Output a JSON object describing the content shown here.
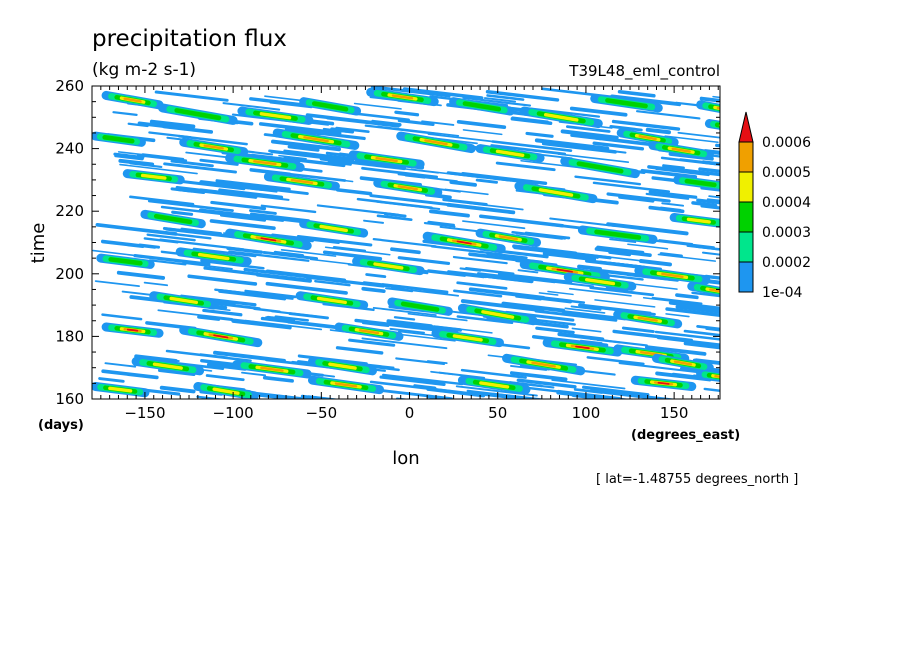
{
  "chart_data": {
    "type": "heatmap",
    "title": "precipitation flux",
    "subtitle": "(kg m-2 s-1)",
    "run_label": "T39L48_eml_control",
    "xlabel": "lon",
    "x_units": "(degrees_east)",
    "ylabel": "time",
    "y_units": "(days)",
    "footnote": "[ lat=-1.48755 degrees_north ]",
    "xlim": [
      -180,
      176
    ],
    "ylim": [
      160,
      260
    ],
    "x_ticks": [
      -150,
      -100,
      -50,
      0,
      50,
      100,
      150
    ],
    "x_tick_labels": [
      "−150",
      "−100",
      "−50",
      "0",
      "50",
      "100",
      "150"
    ],
    "y_ticks": [
      160,
      180,
      200,
      220,
      240,
      260
    ],
    "y_tick_labels": [
      "160",
      "180",
      "200",
      "220",
      "240",
      "260"
    ],
    "colorbar": {
      "levels": [
        0.0001,
        0.0002,
        0.0003,
        0.0004,
        0.0005,
        0.0006
      ],
      "labels": [
        "1e-04",
        "0.0002",
        "0.0003",
        "0.0004",
        "0.0005",
        "0.0006"
      ],
      "colors": [
        "#1e96f0",
        "#00e68c",
        "#00d200",
        "#f0f000",
        "#f0a000",
        "#e60f14"
      ],
      "extend": "max"
    },
    "streaks": [
      {
        "x": -172,
        "y": 257,
        "len": 30,
        "dy": -3,
        "peak": 4
      },
      {
        "x": -140,
        "y": 253,
        "len": 40,
        "dy": -4,
        "peak": 2
      },
      {
        "x": -95,
        "y": 252,
        "len": 38,
        "dy": -3,
        "peak": 3
      },
      {
        "x": -60,
        "y": 255,
        "len": 30,
        "dy": -3,
        "peak": 2
      },
      {
        "x": -22,
        "y": 258,
        "len": 36,
        "dy": -3,
        "peak": 4
      },
      {
        "x": -5,
        "y": 244,
        "len": 40,
        "dy": -4,
        "peak": 4
      },
      {
        "x": 25,
        "y": 255,
        "len": 32,
        "dy": -3,
        "peak": 2
      },
      {
        "x": 65,
        "y": 252,
        "len": 42,
        "dy": -4,
        "peak": 3
      },
      {
        "x": 105,
        "y": 256,
        "len": 36,
        "dy": -3,
        "peak": 2
      },
      {
        "x": 120,
        "y": 245,
        "len": 30,
        "dy": -3,
        "peak": 4
      },
      {
        "x": 165,
        "y": 254,
        "len": 28,
        "dy": -3,
        "peak": 5
      },
      {
        "x": 170,
        "y": 248,
        "len": 22,
        "dy": -2,
        "peak": 5
      },
      {
        "x": -178,
        "y": 244,
        "len": 26,
        "dy": -2,
        "peak": 2
      },
      {
        "x": -128,
        "y": 242,
        "len": 34,
        "dy": -3,
        "peak": 4
      },
      {
        "x": -102,
        "y": 237,
        "len": 40,
        "dy": -3,
        "peak": 4
      },
      {
        "x": -75,
        "y": 245,
        "len": 44,
        "dy": -4,
        "peak": 4
      },
      {
        "x": -32,
        "y": 238,
        "len": 38,
        "dy": -3,
        "peak": 4
      },
      {
        "x": 40,
        "y": 240,
        "len": 34,
        "dy": -3,
        "peak": 3
      },
      {
        "x": 88,
        "y": 236,
        "len": 40,
        "dy": -4,
        "peak": 2
      },
      {
        "x": 138,
        "y": 241,
        "len": 32,
        "dy": -3,
        "peak": 4
      },
      {
        "x": -160,
        "y": 232,
        "len": 30,
        "dy": -2,
        "peak": 3
      },
      {
        "x": -80,
        "y": 231,
        "len": 38,
        "dy": -3,
        "peak": 4
      },
      {
        "x": -18,
        "y": 229,
        "len": 34,
        "dy": -3,
        "peak": 4
      },
      {
        "x": 62,
        "y": 228,
        "len": 42,
        "dy": -4,
        "peak": 3
      },
      {
        "x": 152,
        "y": 230,
        "len": 26,
        "dy": -2,
        "peak": 2
      },
      {
        "x": -150,
        "y": 219,
        "len": 32,
        "dy": -3,
        "peak": 2
      },
      {
        "x": -102,
        "y": 213,
        "len": 44,
        "dy": -4,
        "peak": 5
      },
      {
        "x": -60,
        "y": 216,
        "len": 34,
        "dy": -3,
        "peak": 3
      },
      {
        "x": 10,
        "y": 212,
        "len": 42,
        "dy": -4,
        "peak": 5
      },
      {
        "x": 40,
        "y": 213,
        "len": 32,
        "dy": -3,
        "peak": 4
      },
      {
        "x": 98,
        "y": 214,
        "len": 40,
        "dy": -3,
        "peak": 2
      },
      {
        "x": 150,
        "y": 218,
        "len": 28,
        "dy": -2,
        "peak": 3
      },
      {
        "x": -175,
        "y": 205,
        "len": 28,
        "dy": -2,
        "peak": 2
      },
      {
        "x": -130,
        "y": 207,
        "len": 38,
        "dy": -3,
        "peak": 3
      },
      {
        "x": -30,
        "y": 204,
        "len": 36,
        "dy": -3,
        "peak": 3
      },
      {
        "x": 65,
        "y": 203,
        "len": 46,
        "dy": -4,
        "peak": 5
      },
      {
        "x": 90,
        "y": 199,
        "len": 36,
        "dy": -3,
        "peak": 3
      },
      {
        "x": 130,
        "y": 201,
        "len": 38,
        "dy": -3,
        "peak": 4
      },
      {
        "x": 160,
        "y": 196,
        "len": 30,
        "dy": -3,
        "peak": 4
      },
      {
        "x": -145,
        "y": 193,
        "len": 34,
        "dy": -3,
        "peak": 3
      },
      {
        "x": -62,
        "y": 193,
        "len": 36,
        "dy": -3,
        "peak": 3
      },
      {
        "x": -10,
        "y": 191,
        "len": 32,
        "dy": -3,
        "peak": 2
      },
      {
        "x": 30,
        "y": 189,
        "len": 40,
        "dy": -4,
        "peak": 3
      },
      {
        "x": 118,
        "y": 187,
        "len": 34,
        "dy": -3,
        "peak": 4
      },
      {
        "x": -172,
        "y": 183,
        "len": 30,
        "dy": -2,
        "peak": 5
      },
      {
        "x": -128,
        "y": 182,
        "len": 42,
        "dy": -4,
        "peak": 5
      },
      {
        "x": -40,
        "y": 183,
        "len": 34,
        "dy": -3,
        "peak": 4
      },
      {
        "x": 15,
        "y": 181,
        "len": 36,
        "dy": -3,
        "peak": 3
      },
      {
        "x": 78,
        "y": 178,
        "len": 40,
        "dy": -3,
        "peak": 5
      },
      {
        "x": 118,
        "y": 176,
        "len": 38,
        "dy": -3,
        "peak": 4
      },
      {
        "x": -155,
        "y": 172,
        "len": 36,
        "dy": -3,
        "peak": 3
      },
      {
        "x": -98,
        "y": 171,
        "len": 40,
        "dy": -3,
        "peak": 4
      },
      {
        "x": -55,
        "y": 172,
        "len": 34,
        "dy": -3,
        "peak": 3
      },
      {
        "x": 55,
        "y": 173,
        "len": 42,
        "dy": -4,
        "peak": 4
      },
      {
        "x": 140,
        "y": 173,
        "len": 30,
        "dy": -3,
        "peak": 4
      },
      {
        "x": -178,
        "y": 164,
        "len": 28,
        "dy": -2,
        "peak": 3
      },
      {
        "x": -120,
        "y": 164,
        "len": 32,
        "dy": -3,
        "peak": 3
      },
      {
        "x": -55,
        "y": 166,
        "len": 38,
        "dy": -3,
        "peak": 4
      },
      {
        "x": 30,
        "y": 166,
        "len": 36,
        "dy": -3,
        "peak": 3
      },
      {
        "x": 128,
        "y": 166,
        "len": 32,
        "dy": -2,
        "peak": 5
      },
      {
        "x": 165,
        "y": 168,
        "len": 24,
        "dy": -2,
        "peak": 4
      }
    ]
  }
}
